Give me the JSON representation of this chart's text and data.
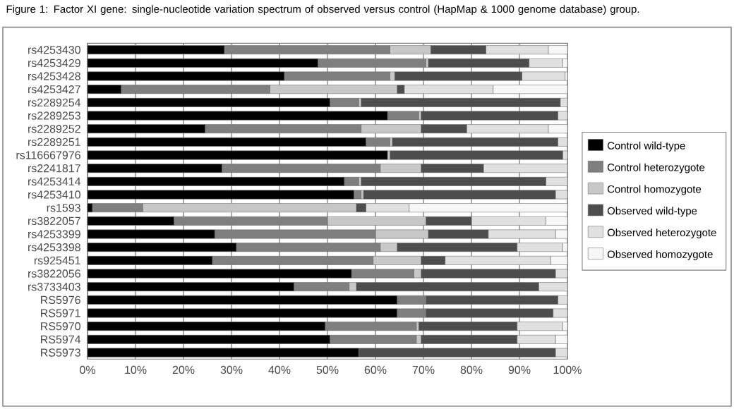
{
  "chart_data": {
    "type": "bar",
    "orientation": "horizontal",
    "stacked": true,
    "title": "Figure 1: Factor XI gene: single-nucleotide variation spectrum of observed versus control (HapMap & 1000 genome database) group.",
    "categories": [
      "rs4253430",
      "rs4253429",
      "rs4253428",
      "rs4253427",
      "rs2289254",
      "rs2289253",
      "rs2289252",
      "rs2289251",
      "rs116667976",
      "rs2241817",
      "rs4253414",
      "rs4253410",
      "rs1593",
      "rs3822057",
      "rs4253399",
      "rs4253398",
      "rs925451",
      "rs3822056",
      "rs3733403",
      "RS5976",
      "RS5971",
      "RS5970",
      "RS5974",
      "RS5973"
    ],
    "series": [
      {
        "name": "Control wild-type",
        "color": "#000000",
        "values": [
          28.5,
          48,
          41,
          7,
          50.5,
          62.5,
          24.5,
          58,
          62.5,
          28,
          53.5,
          55.5,
          1,
          18,
          26.5,
          31,
          26,
          55,
          43,
          64.5,
          64.5,
          49.5,
          50.5,
          56.5
        ]
      },
      {
        "name": "Control heterozygote",
        "color": "#7f7f7f",
        "values": [
          34.5,
          22.5,
          22,
          31,
          6,
          6.5,
          32.5,
          5,
          0,
          33,
          3,
          1.5,
          10.5,
          32,
          33.5,
          30,
          33.5,
          13,
          11.5,
          6,
          6,
          19,
          18,
          0
        ]
      },
      {
        "name": "Control homozygote",
        "color": "#c8c8c8",
        "values": [
          8.5,
          0.5,
          1,
          26.5,
          0.5,
          0.5,
          12.5,
          0.5,
          0.5,
          8.5,
          0.5,
          0.5,
          44.5,
          20.5,
          11,
          3.5,
          10,
          1.5,
          1.5,
          0,
          0,
          0.5,
          1,
          0
        ]
      },
      {
        "name": "Observed wild-type",
        "color": "#4d4d4d",
        "values": [
          11.5,
          21,
          26.5,
          1.5,
          41.5,
          28.5,
          9.5,
          34.5,
          36,
          13,
          38.5,
          40,
          2,
          9.5,
          12.5,
          25,
          5,
          28,
          38,
          27.5,
          26.5,
          20.5,
          20,
          41
        ]
      },
      {
        "name": "Observed heterozygote",
        "color": "#e0e0e0",
        "values": [
          13,
          7,
          9,
          18.5,
          1.5,
          2,
          17,
          2,
          1,
          17.5,
          4.5,
          2.5,
          9,
          15.5,
          14,
          9.5,
          22,
          2.5,
          6,
          2,
          3,
          9.5,
          8,
          2.5
        ]
      },
      {
        "name": "Observed homozygote",
        "color": "#f7f7f7",
        "values": [
          4,
          1,
          0.5,
          15.5,
          0,
          0,
          4,
          0,
          0,
          0,
          0,
          0,
          33,
          4.5,
          2.5,
          1,
          3.5,
          0,
          0,
          0,
          0,
          1,
          2.5,
          0
        ]
      }
    ],
    "xlim": [
      0,
      100
    ],
    "xticks": [
      {
        "value": 0,
        "label": "0%"
      },
      {
        "value": 10,
        "label": "10%"
      },
      {
        "value": 20,
        "label": "20%"
      },
      {
        "value": 30,
        "label": "30%"
      },
      {
        "value": 40,
        "label": "40%"
      },
      {
        "value": 50,
        "label": "50%"
      },
      {
        "value": 60,
        "label": "60%"
      },
      {
        "value": 70,
        "label": "70%"
      },
      {
        "value": 80,
        "label": "80%"
      },
      {
        "value": 90,
        "label": "90%"
      },
      {
        "value": 100,
        "label": "100%"
      }
    ],
    "grid": "x",
    "legend": "right"
  }
}
